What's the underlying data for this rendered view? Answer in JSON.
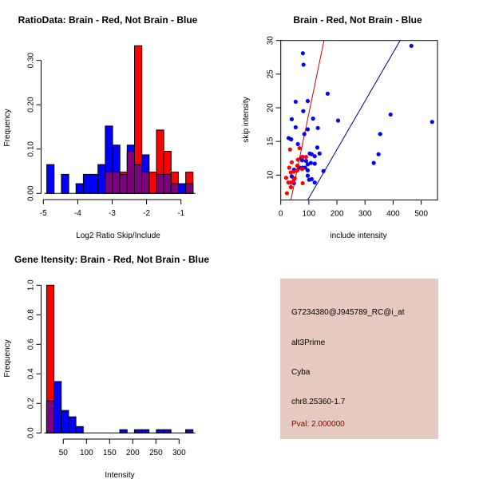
{
  "colors": {
    "red": "#ff0000",
    "blue": "#0000ff",
    "overlap": "#7f007f",
    "panel": "#e6c9c1",
    "pval": "#8b0000"
  },
  "chart_data": [
    {
      "type": "bar",
      "title": "RatioData: Brain - Red, Not Brain - Blue",
      "xlabel": "Log2 Ratio Skip/Include",
      "ylabel": "Frequency",
      "bin_start": -4.9,
      "bin_width": 0.2125,
      "series": [
        {
          "name": "Not Brain",
          "color": "blue",
          "values": [
            0.065,
            0,
            0.043,
            0,
            0.022,
            0.043,
            0.043,
            0.065,
            0.152,
            0.109,
            0.043,
            0.109,
            0.065,
            0.087,
            0,
            0.043,
            0.043,
            0.022,
            0.022,
            0.022
          ]
        },
        {
          "name": "Brain",
          "color": "red",
          "values": [
            0,
            0,
            0,
            0,
            0,
            0,
            0,
            0,
            0.048,
            0.048,
            0.048,
            0.095,
            0.333,
            0.048,
            0.048,
            0.143,
            0.095,
            0.048,
            0,
            0.048
          ]
        }
      ],
      "xticks": [
        -5,
        -4,
        -3,
        -2,
        -1
      ],
      "yticks": [
        "0.00",
        "0.10",
        "0.20",
        "0.30"
      ],
      "xlim": [
        -5,
        -0.65
      ],
      "ylim": [
        0,
        0.333
      ]
    },
    {
      "type": "scatter",
      "title": "Brain - Red, Not Brain - Blue",
      "xlabel": "include intensity",
      "ylabel": "skip intensity",
      "xlim": [
        0,
        558
      ],
      "ylim": [
        6.3,
        30
      ],
      "xticks": [
        0,
        100,
        200,
        300,
        400,
        500
      ],
      "yticks": [
        10,
        15,
        20,
        25,
        30
      ],
      "series": [
        {
          "name": "Not Brain",
          "color": "blue",
          "points": [
            [
              78.6,
              28.1
            ],
            [
              81,
              26.4
            ],
            [
              167,
              22.1
            ],
            [
              53,
              20.9
            ],
            [
              96,
              21.0
            ],
            [
              80,
              19.5
            ],
            [
              204,
              18.1
            ],
            [
              391,
              19.0
            ],
            [
              465,
              29.2
            ],
            [
              539,
              17.9
            ],
            [
              39,
              18.3
            ],
            [
              115,
              18.4
            ],
            [
              53,
              17.1
            ],
            [
              96,
              16.8
            ],
            [
              132,
              17.0
            ],
            [
              84,
              16.1
            ],
            [
              354,
              16.1
            ],
            [
              28,
              15.5
            ],
            [
              37,
              15.3
            ],
            [
              61,
              14.6
            ],
            [
              130,
              14.1
            ],
            [
              138,
              13.2
            ],
            [
              103,
              13.2
            ],
            [
              110,
              13.1
            ],
            [
              121,
              12.8
            ],
            [
              348,
              13.1
            ],
            [
              331,
              11.8
            ],
            [
              78,
              12.7
            ],
            [
              73,
              12.5
            ],
            [
              76,
              12.2
            ],
            [
              90,
              12.1
            ],
            [
              96,
              11.6
            ],
            [
              107,
              11.8
            ],
            [
              121,
              11.7
            ],
            [
              87,
              11.1
            ],
            [
              67,
              11.1
            ],
            [
              78,
              11.1
            ],
            [
              47,
              10.8
            ],
            [
              96,
              10.7
            ],
            [
              152,
              10.6
            ],
            [
              39,
              9.8
            ],
            [
              96,
              9.9
            ],
            [
              101,
              9.3
            ],
            [
              110,
              9.4
            ],
            [
              121,
              8.9
            ],
            [
              47,
              8.8
            ]
          ],
          "fit_line": [
            [
              96,
              6.3
            ],
            [
              425,
              30
            ]
          ]
        },
        {
          "name": "Brain",
          "color": "red",
          "points": [
            [
              33,
              13.8
            ],
            [
              67,
              14.0
            ],
            [
              39,
              11.9
            ],
            [
              61,
              12.3
            ],
            [
              59,
              11.4
            ],
            [
              30,
              11.1
            ],
            [
              36,
              10.4
            ],
            [
              59,
              10.7
            ],
            [
              47,
              10.5
            ],
            [
              76,
              10.9
            ],
            [
              90,
              12.7
            ],
            [
              76,
              12.7
            ],
            [
              19,
              9.6
            ],
            [
              50,
              9.5
            ],
            [
              27,
              8.9
            ],
            [
              36,
              8.9
            ],
            [
              45,
              9.0
            ],
            [
              78,
              8.8
            ],
            [
              36,
              8.2
            ],
            [
              22,
              7.3
            ],
            [
              47,
              9.4
            ]
          ],
          "fit_line": [
            [
              36,
              6.3
            ],
            [
              154,
              30
            ]
          ]
        }
      ]
    },
    {
      "type": "bar",
      "title": "Gene Itensity: Brain - Red, Not Brain - Blue",
      "xlabel": "Intensity",
      "ylabel": "Frequency",
      "bin_start": 14,
      "bin_width": 15.8,
      "series": [
        {
          "name": "Not Brain",
          "color": "blue",
          "values": [
            0.217,
            0.348,
            0.152,
            0.109,
            0.043,
            0,
            0,
            0,
            0,
            0,
            0.022,
            0,
            0.022,
            0.022,
            0,
            0.022,
            0.022,
            0,
            0,
            0.022
          ]
        },
        {
          "name": "Brain",
          "color": "red",
          "values": [
            1.0,
            0,
            0,
            0,
            0,
            0,
            0,
            0,
            0,
            0,
            0,
            0,
            0,
            0,
            0,
            0,
            0,
            0,
            0,
            0
          ]
        }
      ],
      "xticks": [
        50,
        100,
        150,
        200,
        250,
        300
      ],
      "yticks": [
        "0.0",
        "0.2",
        "0.4",
        "0.6",
        "0.8",
        "1.0"
      ],
      "xlim": [
        0,
        330
      ],
      "ylim": [
        0,
        1.0
      ]
    }
  ],
  "info": {
    "probe": "G7234380@J945789_RC@i_at",
    "event": "alt3Prime",
    "gene": "Cyba",
    "location": "chr8.25360-1.7",
    "pval": "Pval: 2.000000"
  }
}
